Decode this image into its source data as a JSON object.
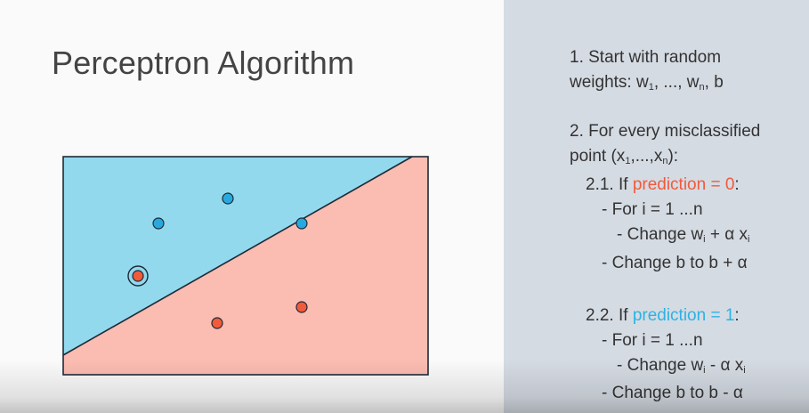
{
  "title": "Perceptron Algorithm",
  "colors": {
    "region_positive": "#92d9ee",
    "region_negative": "#fbbcb1",
    "point_blue": "#27a9de",
    "point_red": "#f15a3b",
    "highlight_red": "#f15a3b",
    "highlight_blue": "#2bb3e3",
    "right_panel": "#d5dbe3"
  },
  "steps": {
    "s1_line1": "1. Start with random",
    "s1_line2_pre": "weights: w",
    "s1_sub1": "1",
    "s1_line2_mid": ", ..., w",
    "s1_subn": "n",
    "s1_line2_post": ", b",
    "s2_line1": "2. For every misclassified",
    "s2_line2_pre": "point (x",
    "s2_sub1": "1",
    "s2_line2_mid": ",...,x",
    "s2_subn": "n",
    "s2_line2_post": "):",
    "s21_pre": "2.1. If ",
    "s21_highlight": "prediction = 0",
    "s21_post": ":",
    "s21_for": "- For i = 1 ...n",
    "s21_change_pre": "- Change w",
    "s21_change_sub": "i",
    "s21_change_mid": " + α x",
    "s21_change_sub2": "i",
    "s21_bias": "- Change b to b + α",
    "s22_pre": "2.2. If ",
    "s22_highlight": "prediction = 1",
    "s22_post": ":",
    "s22_for": "- For i = 1 ...n",
    "s22_change_pre": "- Change w",
    "s22_change_sub": "i",
    "s22_change_mid": " - α x",
    "s22_change_sub2": "i",
    "s22_bias": "- Change b to b - α"
  }
}
